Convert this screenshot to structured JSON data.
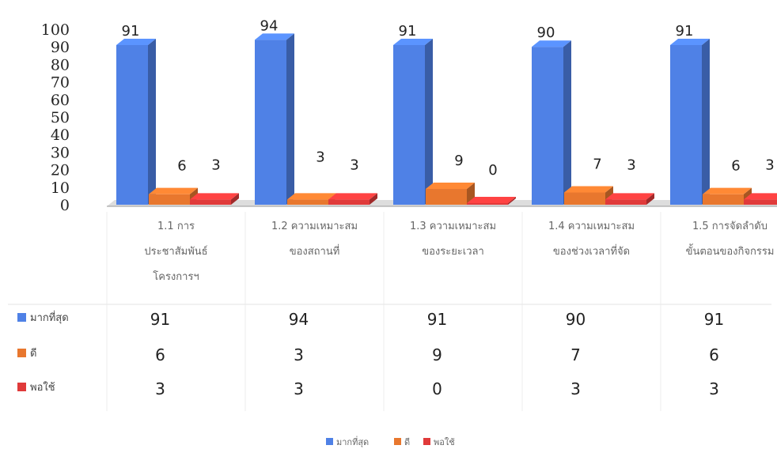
{
  "chart_data": {
    "type": "bar",
    "categories": [
      [
        "1.1 การ",
        "ประชาสัมพันธ์",
        "โครงการฯ"
      ],
      [
        "1.2 ความเหมาะสม",
        "ของสถานที่"
      ],
      [
        "1.3 ความเหมาะสม",
        "ของระยะเวลา"
      ],
      [
        "1.4 ความเหมาะสม",
        "ของช่วงเวลาที่จัด"
      ],
      [
        "1.5 การจัดลำดับ",
        "ขั้นตอนของกิจกรรม"
      ]
    ],
    "series": [
      {
        "name": "มากที่สุด",
        "color": "#4f81e6",
        "values": [
          91,
          94,
          91,
          90,
          91
        ]
      },
      {
        "name": "ดี",
        "color": "#e8772e",
        "values": [
          6,
          3,
          9,
          7,
          6
        ]
      },
      {
        "name": "พอใช้",
        "color": "#e03a3a",
        "values": [
          3,
          3,
          0,
          3,
          3
        ]
      }
    ],
    "ylim": [
      0,
      100
    ],
    "yticks": [
      0,
      10,
      20,
      30,
      40,
      50,
      60,
      70,
      80,
      90,
      100
    ],
    "data_table": true,
    "legend": "bottom",
    "grid": false
  }
}
